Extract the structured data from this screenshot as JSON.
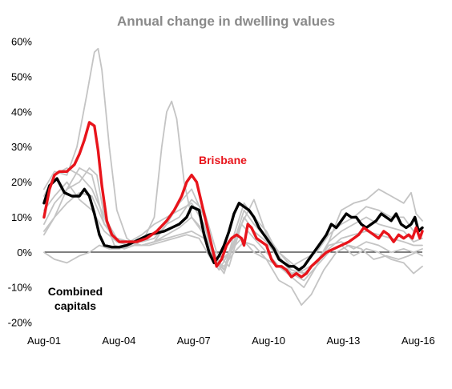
{
  "chart_data": {
    "type": "line",
    "title": "Annual change in dwelling values",
    "xlabel": "",
    "ylabel": "",
    "ylim": [
      -20,
      60
    ],
    "xlim": [
      2001.583,
      2016.75
    ],
    "y_ticks": [
      -20,
      -10,
      0,
      10,
      20,
      30,
      40,
      50,
      60
    ],
    "y_tick_labels": [
      "-20%",
      "-10%",
      "0%",
      "10%",
      "20%",
      "30%",
      "40%",
      "50%",
      "60%"
    ],
    "x_ticks": [
      2001.583,
      2004.583,
      2007.583,
      2010.583,
      2013.583,
      2016.583
    ],
    "x_tick_labels": [
      "Aug-01",
      "Aug-04",
      "Aug-07",
      "Aug-10",
      "Aug-13",
      "Aug-16"
    ],
    "annotations": [
      "Brisbane",
      "Combined capitals"
    ],
    "grid": false,
    "colors": {
      "highlight": "#e8141b",
      "combined": "#000000",
      "other": "#c4c4c4"
    },
    "series": [
      {
        "name": "Brisbane",
        "x": [
          2001.58,
          2001.8,
          2002.0,
          2002.2,
          2002.5,
          2002.8,
          2003.0,
          2003.2,
          2003.4,
          2003.6,
          2003.75,
          2003.9,
          2004.1,
          2004.3,
          2004.6,
          2004.9,
          2005.3,
          2005.7,
          2006.1,
          2006.5,
          2006.8,
          2007.1,
          2007.3,
          2007.5,
          2007.7,
          2007.9,
          2008.2,
          2008.5,
          2008.7,
          2008.9,
          2009.1,
          2009.3,
          2009.5,
          2009.6,
          2009.75,
          2009.9,
          2010.1,
          2010.3,
          2010.5,
          2010.7,
          2010.9,
          2011.1,
          2011.3,
          2011.5,
          2011.7,
          2011.9,
          2012.1,
          2012.3,
          2012.6,
          2012.9,
          2013.2,
          2013.5,
          2013.8,
          2014.0,
          2014.2,
          2014.4,
          2014.6,
          2014.8,
          2015.0,
          2015.2,
          2015.4,
          2015.6,
          2015.8,
          2016.0,
          2016.2,
          2016.35,
          2016.5,
          2016.65,
          2016.75
        ],
        "y": [
          10,
          18,
          22,
          23,
          23,
          25,
          28,
          32,
          37,
          36,
          29,
          19,
          9,
          5,
          3,
          3,
          3,
          4,
          6,
          9,
          12,
          16,
          20,
          22,
          20,
          14,
          5,
          -4,
          -2,
          2,
          4,
          5,
          4,
          2,
          8,
          7,
          4,
          3,
          2,
          -2,
          -4,
          -4,
          -5,
          -7,
          -6,
          -7,
          -6,
          -4,
          -2,
          0,
          1,
          2,
          3,
          4,
          5,
          7,
          6,
          5,
          4,
          6,
          5,
          3,
          5,
          4,
          5,
          4,
          7,
          4,
          6
        ]
      },
      {
        "name": "Combined capitals",
        "x": [
          2001.58,
          2001.8,
          2002.1,
          2002.4,
          2002.7,
          2003.0,
          2003.2,
          2003.4,
          2003.6,
          2003.8,
          2004.0,
          2004.3,
          2004.6,
          2004.9,
          2005.2,
          2005.5,
          2005.8,
          2006.1,
          2006.4,
          2006.7,
          2007.0,
          2007.3,
          2007.5,
          2007.8,
          2008.0,
          2008.2,
          2008.4,
          2008.6,
          2008.8,
          2009.0,
          2009.2,
          2009.4,
          2009.6,
          2009.8,
          2010.0,
          2010.2,
          2010.4,
          2010.6,
          2010.8,
          2011.0,
          2011.2,
          2011.4,
          2011.6,
          2011.8,
          2012.0,
          2012.3,
          2012.6,
          2012.9,
          2013.1,
          2013.3,
          2013.5,
          2013.7,
          2013.9,
          2014.1,
          2014.3,
          2014.5,
          2014.7,
          2014.9,
          2015.1,
          2015.3,
          2015.5,
          2015.7,
          2015.9,
          2016.1,
          2016.3,
          2016.45,
          2016.6,
          2016.75
        ],
        "y": [
          14,
          19,
          21,
          17,
          16,
          16,
          18,
          16,
          11,
          5,
          2,
          1.5,
          1.5,
          2,
          3,
          4,
          5,
          5.5,
          6,
          7,
          8,
          10,
          13,
          12,
          5,
          0,
          -3,
          -1,
          2,
          6,
          11,
          14,
          13,
          12,
          10,
          7,
          5,
          3,
          1,
          -2,
          -3,
          -4,
          -4,
          -5,
          -4,
          -1,
          2,
          5,
          8,
          7,
          9,
          11,
          10,
          10,
          8,
          7,
          8,
          9,
          11,
          10,
          9,
          11,
          8,
          7,
          8,
          10,
          6,
          7
        ]
      },
      {
        "name": "",
        "x": [
          2001.58,
          2002.0,
          2002.5,
          2002.9,
          2003.3,
          2003.6,
          2003.75,
          2003.9,
          2004.2,
          2004.5,
          2004.9,
          2005.3,
          2005.8,
          2006.3,
          2006.8,
          2007.3,
          2007.8,
          2008.2,
          2008.6,
          2009.0,
          2009.5,
          2010.0,
          2010.5,
          2011.0,
          2011.5,
          2012.0,
          2012.5,
          2013.0,
          2013.5,
          2014.0,
          2014.5,
          2015.0,
          2015.5,
          2016.0,
          2016.4,
          2016.75
        ],
        "y": [
          18,
          23,
          22,
          30,
          45,
          57,
          58,
          52,
          30,
          12,
          4,
          2,
          2,
          3,
          4,
          5,
          4,
          -1,
          -5,
          0,
          8,
          4,
          0,
          -4,
          -6,
          -5,
          -3,
          2,
          3,
          1,
          3,
          2,
          0,
          1,
          0,
          1
        ]
      },
      {
        "name": "",
        "x": [
          2001.58,
          2002.0,
          2002.5,
          2003.0,
          2003.4,
          2003.7,
          2004.0,
          2004.4,
          2004.8,
          2005.2,
          2005.6,
          2006.0,
          2006.3,
          2006.5,
          2006.7,
          2006.9,
          2007.2,
          2007.5,
          2007.9,
          2008.3,
          2008.6,
          2009.0,
          2009.5,
          2010.0,
          2010.5,
          2011.0,
          2011.5,
          2012.0,
          2012.5,
          2013.0,
          2013.5,
          2014.0,
          2014.5,
          2015.0,
          2015.5,
          2016.0,
          2016.4,
          2016.75
        ],
        "y": [
          8,
          14,
          18,
          20,
          24,
          22,
          10,
          2,
          1,
          2,
          4,
          10,
          30,
          40,
          43,
          38,
          20,
          10,
          6,
          2,
          -3,
          0,
          4,
          0,
          -2,
          -4,
          -7,
          -10,
          -4,
          0,
          2,
          -1,
          1,
          0,
          -2,
          -3,
          -6,
          -4
        ]
      },
      {
        "name": "",
        "x": [
          2001.58,
          2002.0,
          2002.5,
          2003.0,
          2003.4,
          2003.8,
          2004.2,
          2004.6,
          2005.0,
          2005.5,
          2006.0,
          2006.5,
          2007.0,
          2007.5,
          2008.0,
          2008.4,
          2008.8,
          2009.2,
          2009.6,
          2010.0,
          2010.5,
          2011.0,
          2011.5,
          2011.9,
          2012.3,
          2012.8,
          2013.3,
          2013.8,
          2014.3,
          2014.8,
          2015.3,
          2015.8,
          2016.2,
          2016.5,
          2016.75
        ],
        "y": [
          0,
          -2,
          -3,
          -1,
          0,
          2,
          1,
          1,
          2,
          2,
          3,
          4,
          5,
          6,
          4,
          -2,
          -4,
          0,
          3,
          2,
          -2,
          -8,
          -10,
          -15,
          -12,
          -5,
          0,
          2,
          1,
          -2,
          -1,
          -2,
          -1,
          0,
          -1
        ]
      },
      {
        "name": "",
        "x": [
          2001.58,
          2002.0,
          2002.5,
          2003.0,
          2003.5,
          2004.0,
          2004.5,
          2005.0,
          2005.5,
          2006.0,
          2006.5,
          2007.0,
          2007.5,
          2008.0,
          2008.5,
          2009.0,
          2009.5,
          2010.0,
          2010.5,
          2011.0,
          2011.5,
          2012.0,
          2012.5,
          2013.0,
          2013.5,
          2014.0,
          2014.5,
          2015.0,
          2015.5,
          2016.0,
          2016.3,
          2016.5,
          2016.75
        ],
        "y": [
          5,
          10,
          18,
          24,
          22,
          8,
          4,
          3,
          2,
          3,
          8,
          10,
          15,
          12,
          0,
          -4,
          8,
          15,
          5,
          0,
          -3,
          -6,
          -3,
          3,
          12,
          14,
          15,
          18,
          16,
          14,
          17,
          11,
          9
        ]
      },
      {
        "name": "",
        "x": [
          2001.58,
          2002.0,
          2002.5,
          2003.0,
          2003.5,
          2004.0,
          2004.5,
          2005.0,
          2005.5,
          2006.0,
          2006.5,
          2007.0,
          2007.5,
          2008.0,
          2008.4,
          2008.8,
          2009.2,
          2009.6,
          2010.0,
          2010.5,
          2011.0,
          2011.5,
          2012.0,
          2012.5,
          2013.0,
          2013.5,
          2014.0,
          2014.5,
          2015.0,
          2015.5,
          2016.0,
          2016.4,
          2016.75
        ],
        "y": [
          12,
          16,
          20,
          15,
          12,
          6,
          3,
          3,
          5,
          8,
          10,
          12,
          14,
          8,
          -2,
          -6,
          3,
          12,
          8,
          4,
          0,
          -4,
          -2,
          0,
          5,
          8,
          10,
          13,
          12,
          10,
          10,
          6,
          7
        ]
      },
      {
        "name": "",
        "x": [
          2001.58,
          2002.0,
          2002.5,
          2003.0,
          2003.5,
          2004.0,
          2004.5,
          2005.0,
          2005.5,
          2006.0,
          2006.5,
          2007.0,
          2007.5,
          2008.0,
          2008.4,
          2008.8,
          2009.2,
          2009.6,
          2010.0,
          2010.5,
          2011.0,
          2011.5,
          2012.0,
          2012.5,
          2013.0,
          2013.5,
          2014.0,
          2014.5,
          2015.0,
          2015.5,
          2016.0,
          2016.4,
          2016.75
        ],
        "y": [
          16,
          22,
          24,
          22,
          18,
          10,
          4,
          3,
          3,
          4,
          8,
          14,
          18,
          10,
          0,
          -5,
          5,
          14,
          10,
          6,
          -1,
          -6,
          -8,
          -4,
          3,
          6,
          8,
          10,
          8,
          7,
          6,
          3,
          4
        ]
      },
      {
        "name": "",
        "x": [
          2001.58,
          2002.0,
          2002.5,
          2003.0,
          2003.5,
          2004.0,
          2004.5,
          2005.0,
          2005.5,
          2006.0,
          2006.5,
          2007.0,
          2007.5,
          2008.0,
          2008.4,
          2008.8,
          2009.2,
          2009.6,
          2010.0,
          2010.5,
          2011.0,
          2011.5,
          2012.0,
          2012.5,
          2013.0,
          2013.5,
          2014.0,
          2014.5,
          2015.0,
          2015.5,
          2016.0,
          2016.4,
          2016.75
        ],
        "y": [
          6,
          10,
          14,
          17,
          16,
          8,
          3,
          2,
          2,
          3,
          5,
          7,
          10,
          6,
          -2,
          -5,
          2,
          10,
          6,
          3,
          -2,
          -5,
          -6,
          -3,
          1,
          4,
          5,
          6,
          5,
          4,
          3,
          2,
          2
        ]
      }
    ]
  }
}
